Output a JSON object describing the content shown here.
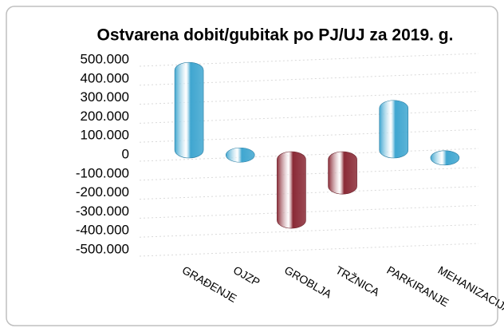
{
  "chart_data": {
    "type": "bar",
    "title": "Ostvarena dobit/gubitak po PJ/UJ za 2019. g.",
    "categories": [
      "GRAĐENJE",
      "OJZP",
      "GROBLJA",
      "TRŽNICA",
      "PARKIRANJE",
      "MEHANIZACIJA"
    ],
    "values": [
      470000,
      20000,
      -370000,
      -190000,
      270000,
      5000
    ],
    "color_positive": "#3fa6d0",
    "color_negative": "#8a2a36",
    "ylim": [
      -500000,
      500000
    ],
    "yticks": [
      {
        "value": -500000,
        "label": "-500.000"
      },
      {
        "value": -400000,
        "label": "-400.000"
      },
      {
        "value": -300000,
        "label": "-300.000"
      },
      {
        "value": -200000,
        "label": "-200.000"
      },
      {
        "value": -100000,
        "label": "-100.000"
      },
      0,
      {
        "value": 100000,
        "label": "100.000"
      },
      {
        "value": 200000,
        "label": "200.000"
      },
      {
        "value": 300000,
        "label": "300.000"
      },
      {
        "value": 400000,
        "label": "400.000"
      },
      {
        "value": 500000,
        "label": "500.000"
      }
    ],
    "grid": true
  }
}
